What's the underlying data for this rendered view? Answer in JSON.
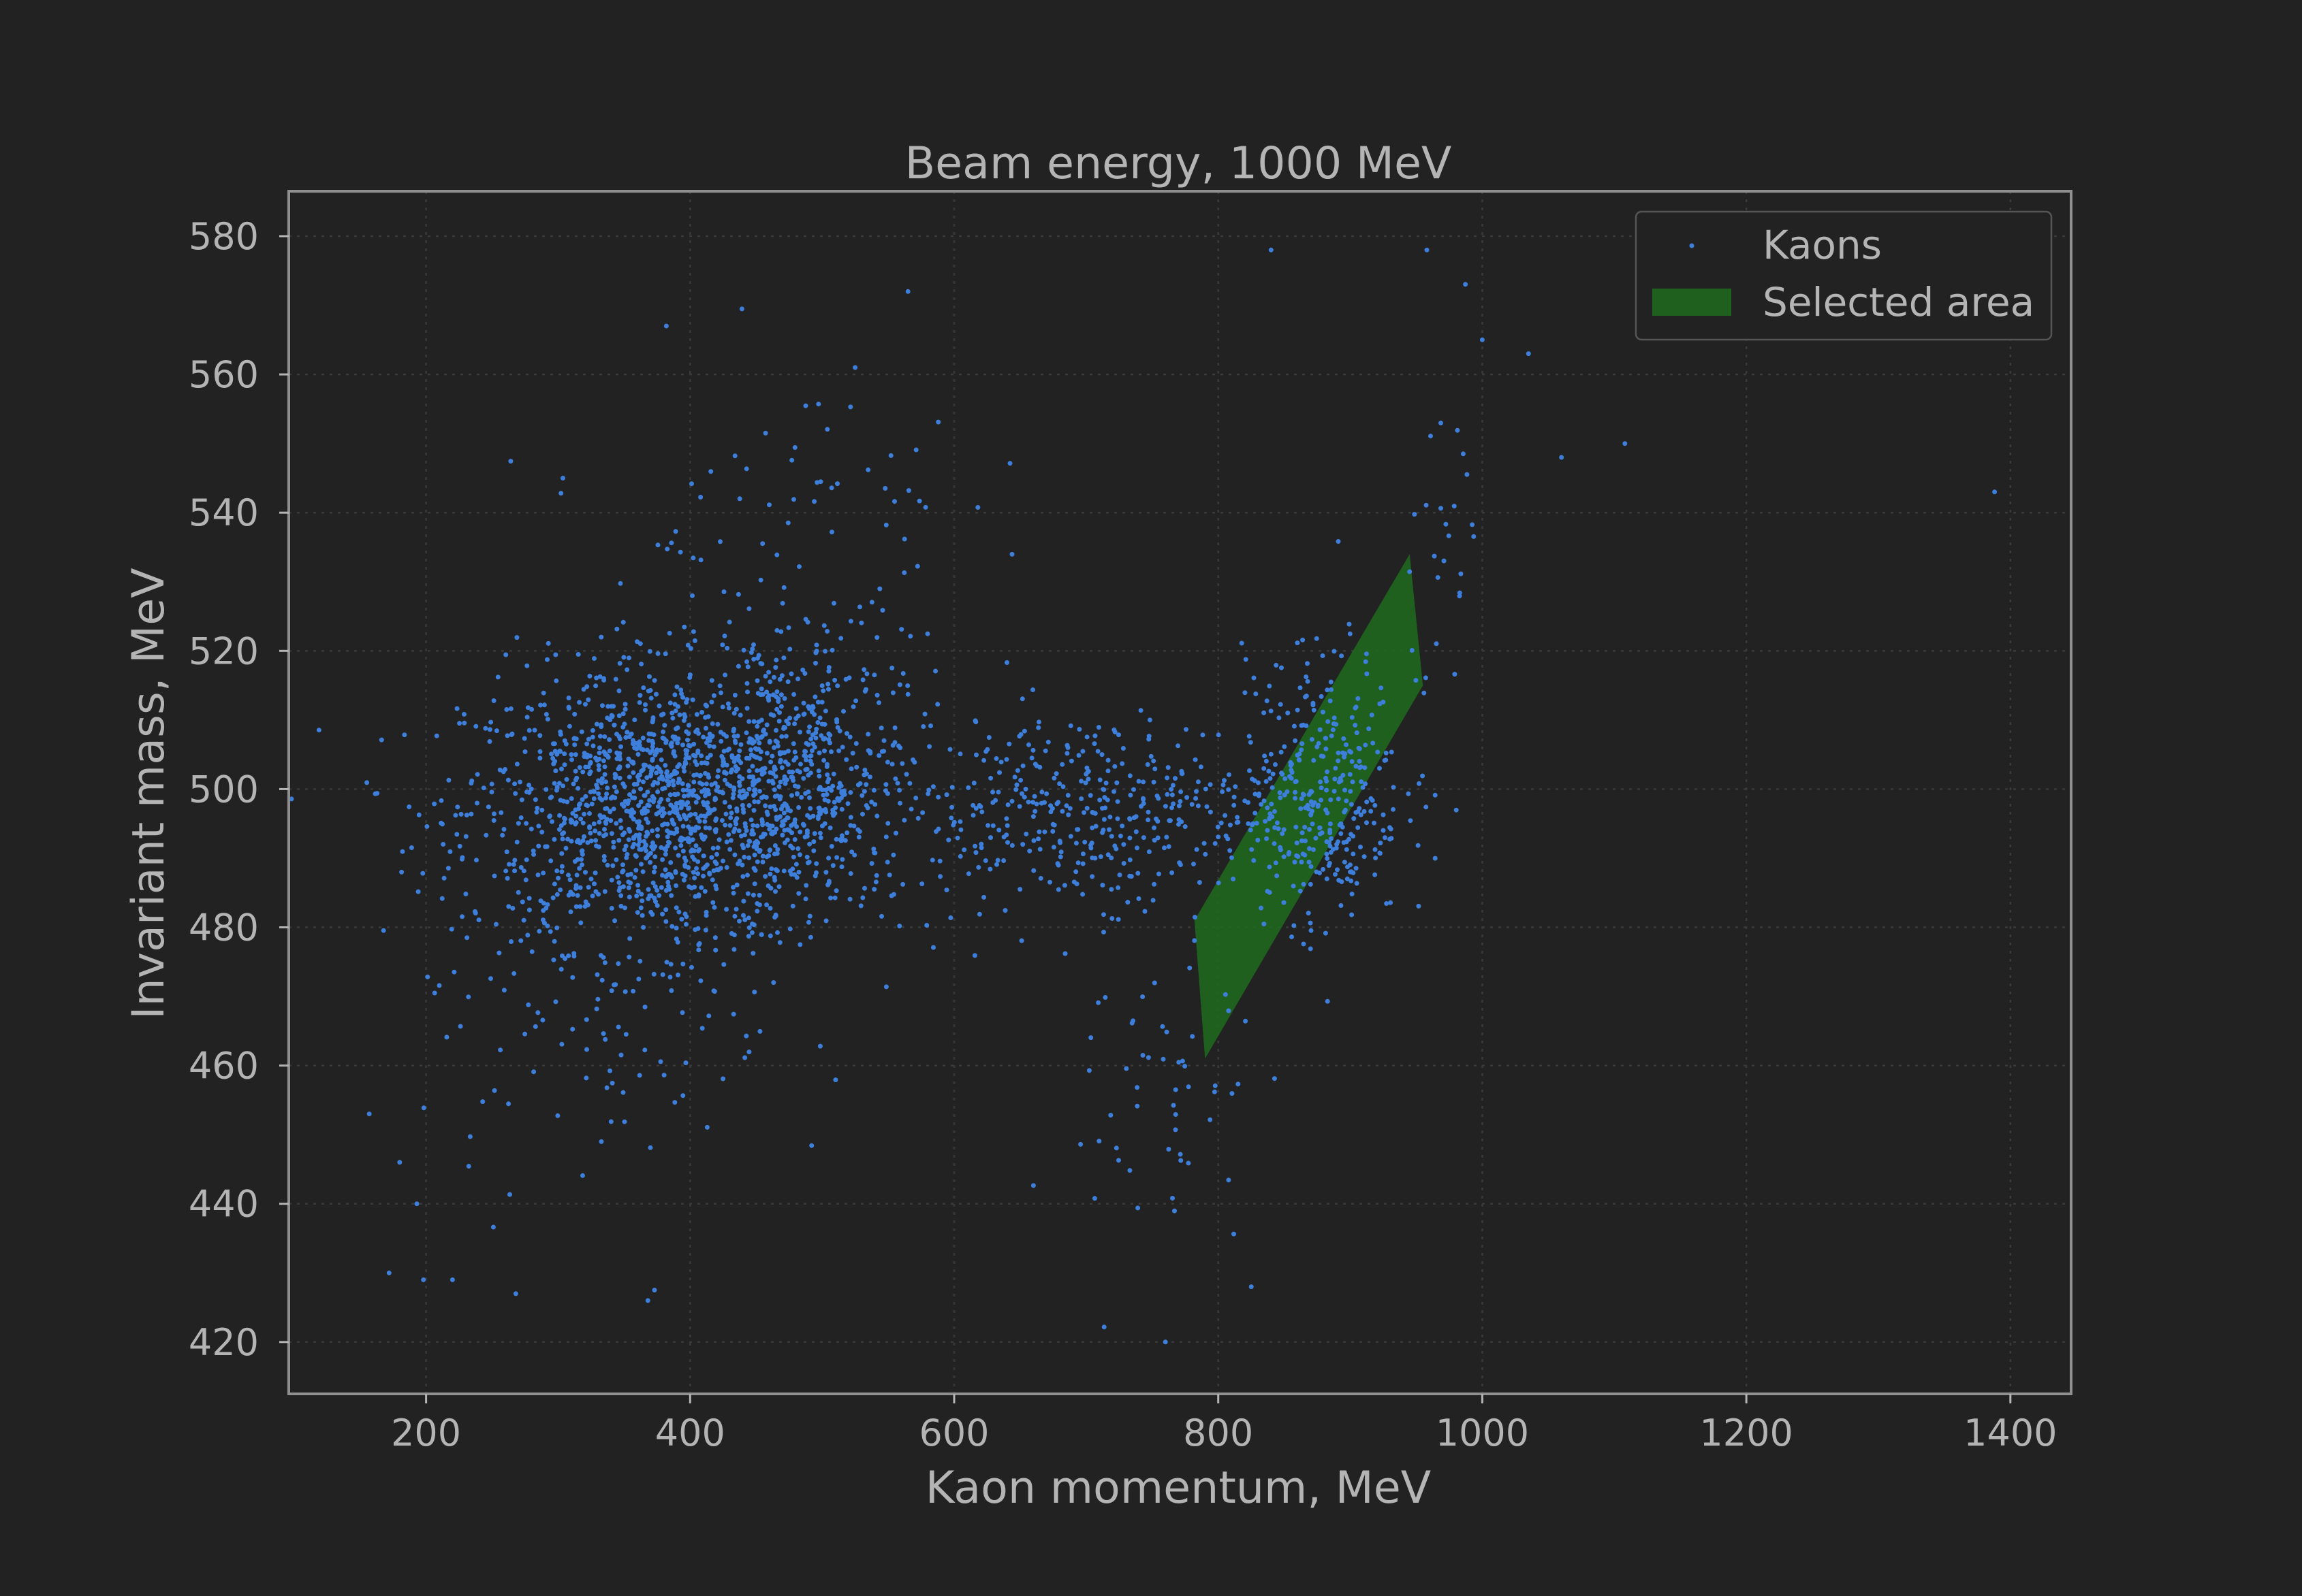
{
  "chart_data": {
    "type": "scatter",
    "title": "Beam energy, 1000 MeV",
    "xlabel": "Kaon momentum, MeV",
    "ylabel": "Invariant mass, MeV",
    "xlim": [
      96,
      1446
    ],
    "ylim": [
      412.5,
      586.5
    ],
    "xticks": [
      200,
      400,
      600,
      800,
      1000,
      1200,
      1400
    ],
    "yticks": [
      420,
      440,
      460,
      480,
      500,
      520,
      540,
      560,
      580
    ],
    "grid": true,
    "legend_position": "top-right",
    "colors": {
      "background": "#222222",
      "points": "#3d7fdb",
      "region": "#1e6b1e",
      "text": "#b4b4b4",
      "frame": "#8f8f8f"
    },
    "series": [
      {
        "name": "Kaons",
        "kind": "scatter",
        "clusters": [
          {
            "cx": 380,
            "cy": 497,
            "sx": 75,
            "sy": 10,
            "n": 1400
          },
          {
            "cx": 470,
            "cy": 503,
            "sx": 45,
            "sy": 10,
            "n": 400
          },
          {
            "cx": 700,
            "cy": 497,
            "sx": 80,
            "sy": 7,
            "n": 420
          },
          {
            "cx": 880,
            "cy": 500,
            "sx": 30,
            "sy": 10,
            "n": 320
          },
          {
            "cx": 470,
            "cy": 535,
            "sx": 70,
            "sy": 14,
            "n": 90
          },
          {
            "cx": 330,
            "cy": 465,
            "sx": 70,
            "sy": 12,
            "n": 90
          },
          {
            "cx": 760,
            "cy": 455,
            "sx": 35,
            "sy": 14,
            "n": 55
          },
          {
            "cx": 975,
            "cy": 535,
            "sx": 15,
            "sy": 14,
            "n": 30
          }
        ],
        "points": [
          [
            1388,
            543
          ],
          [
            1108,
            550
          ],
          [
            1060,
            548
          ],
          [
            1035,
            563
          ],
          [
            1000,
            565
          ],
          [
            958,
            578
          ],
          [
            840,
            578
          ],
          [
            565,
            572
          ],
          [
            525,
            561
          ],
          [
            382,
            567
          ],
          [
            157,
            453
          ],
          [
            172,
            430
          ],
          [
            198,
            429
          ],
          [
            220,
            429
          ],
          [
            268,
            427
          ],
          [
            368,
            426
          ],
          [
            760,
            420
          ],
          [
            825,
            428
          ],
          [
            180,
            446
          ],
          [
            193,
            440
          ]
        ]
      },
      {
        "name": "Selected area",
        "kind": "polygon",
        "vertices": [
          [
            782,
            481
          ],
          [
            945,
            534
          ],
          [
            955,
            515
          ],
          [
            790,
            461
          ]
        ]
      }
    ]
  }
}
